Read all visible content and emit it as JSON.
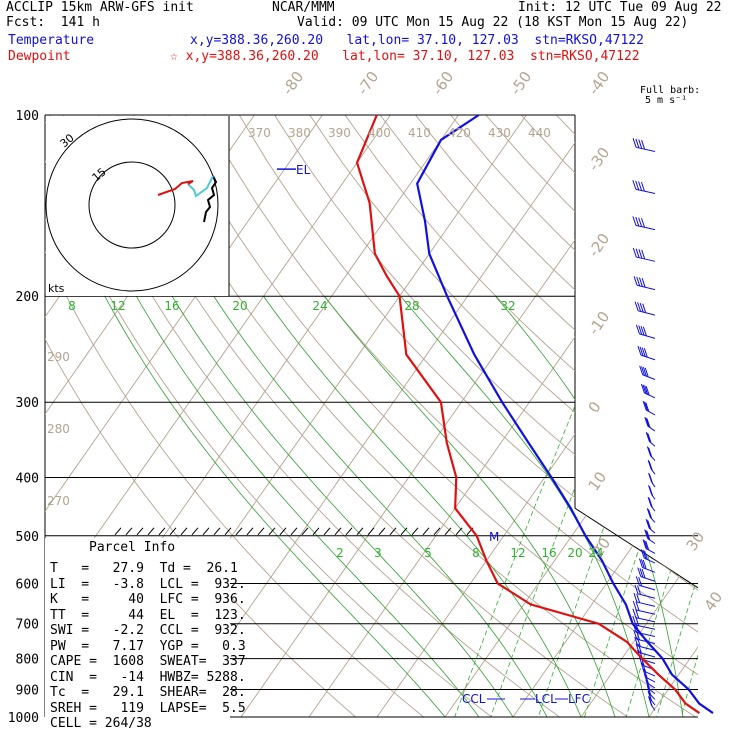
{
  "header": {
    "line1_left": "ACCLIP 15km ARW-GFS init",
    "line1_center": "NCAR/MMM",
    "line1_right": "Init: 12 UTC Tue 09 Aug 22",
    "line2_left": "Fcst:  141 h",
    "line2_right": "Valid: 09 UTC Mon 15 Aug 22 (18 KST Mon 15 Aug 22)",
    "temp_label": "Temperature",
    "temp_info": "x,y=388.36,260.20   lat,lon= 37.10, 127.03  stn=RKSO,47122",
    "dew_label": "Dewpoint",
    "dew_info": "☆ x,y=388.36,260.20   lat,lon= 37.10, 127.03  stn=RKSO,47122"
  },
  "barb_legend": {
    "line1": "Full barb:",
    "line2": "5 m s⁻¹"
  },
  "hodograph": {
    "units": "kts",
    "rings": [
      "30",
      "15"
    ]
  },
  "parcel_info": {
    "title": "Parcel Info",
    "rows": [
      "T   =   27.9  Td =  26.1",
      "LI  =   -3.8  LCL =  932.",
      "K   =     40  LFC =  936.",
      "TT  =     44  EL  =  123.",
      "SWI =   -2.2  CCL =  932.",
      "PW  =   7.17  YGP =   0.3",
      "CAPE =  1608  SWEAT=  337",
      "CIN  =   -14  HWBZ= 5288.",
      "Tc  =   29.1  SHEAR=  28.",
      "SREH =   119  LAPSE=  5.5",
      "CELL = 264/38"
    ]
  },
  "level_labels": {
    "el": "EL",
    "ccl": "CCL",
    "lcl": "LCL",
    "lfc": "LFC",
    "m": "M"
  },
  "colors": {
    "temperature": "#1010e0",
    "dewpoint": "#e01010",
    "isotherm": "#b4a490",
    "mixing_ratio": "#30b030",
    "moist_adiabat": "#30a030",
    "axis": "#000000"
  },
  "chart_data": {
    "type": "skew-t log-p",
    "y_axis": {
      "label": "Pressure (hPa)",
      "ticks": [
        100,
        200,
        300,
        400,
        500,
        600,
        700,
        800,
        900,
        1000
      ],
      "log_scale": true
    },
    "isotherm_labels": [
      "-80",
      "-70",
      "-60",
      "-50",
      "-40",
      "-30",
      "-20",
      "-10",
      "0",
      "10",
      "20",
      "30",
      "40"
    ],
    "theta_labels_top": [
      "370",
      "380",
      "390",
      "400",
      "410",
      "420",
      "430",
      "440"
    ],
    "theta_labels_left": [
      "290",
      "280",
      "270"
    ],
    "mixing_ratio_upper_labels": [
      "8",
      "12",
      "16",
      "20",
      "24",
      "28",
      "32"
    ],
    "mixing_ratio_lower_labels": [
      "2",
      "3",
      "5",
      "8",
      "12",
      "16",
      "20",
      "24"
    ],
    "temperature": [
      [
        985,
        29
      ],
      [
        950,
        26
      ],
      [
        900,
        23
      ],
      [
        850,
        19
      ],
      [
        800,
        16
      ],
      [
        750,
        12
      ],
      [
        700,
        8
      ],
      [
        650,
        5
      ],
      [
        600,
        1
      ],
      [
        550,
        -3
      ],
      [
        500,
        -8
      ],
      [
        450,
        -13
      ],
      [
        400,
        -19
      ],
      [
        350,
        -26
      ],
      [
        300,
        -34
      ],
      [
        250,
        -43
      ],
      [
        200,
        -53
      ],
      [
        170,
        -60
      ],
      [
        150,
        -64
      ],
      [
        130,
        -69
      ],
      [
        110,
        -70
      ],
      [
        100,
        -67
      ]
    ],
    "dewpoint": [
      [
        985,
        27
      ],
      [
        950,
        24
      ],
      [
        900,
        21
      ],
      [
        850,
        17
      ],
      [
        800,
        13
      ],
      [
        750,
        9
      ],
      [
        700,
        3
      ],
      [
        650,
        -9
      ],
      [
        600,
        -16
      ],
      [
        550,
        -20
      ],
      [
        500,
        -24
      ],
      [
        450,
        -30
      ],
      [
        400,
        -33
      ],
      [
        350,
        -38
      ],
      [
        300,
        -43
      ],
      [
        250,
        -53
      ],
      [
        200,
        -60
      ],
      [
        185,
        -64
      ],
      [
        170,
        -68
      ],
      [
        140,
        -74
      ],
      [
        120,
        -80
      ],
      [
        100,
        -82
      ]
    ],
    "parcel_levels": {
      "EL_hPa": 123,
      "LCL_hPa": 932,
      "LFC_hPa": 936,
      "CCL_hPa": 932
    }
  }
}
